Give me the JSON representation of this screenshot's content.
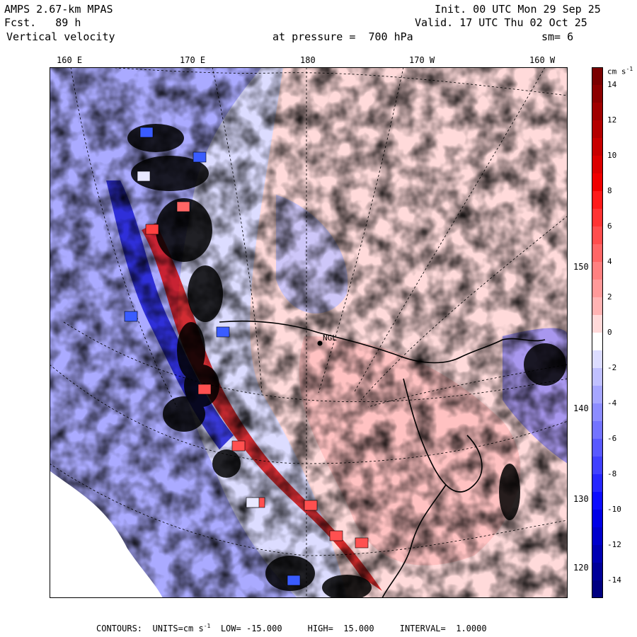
{
  "header": {
    "model": "AMPS 2.67-km MPAS",
    "fcst_label": "Fcst.",
    "fcst_value": "89 h",
    "field": "Vertical velocity",
    "init": "Init. 00 UTC Mon 29 Sep 25",
    "valid": "Valid. 17 UTC Thu 02 Oct 25",
    "level_label": "at pressure =",
    "level_value": "700 hPa",
    "smooth": "sm= 6"
  },
  "map": {
    "top_longitudes": [
      "160 E",
      "170 E",
      "180",
      "170 W",
      "160 W"
    ],
    "right_latitudes": [
      "150 W",
      "140 W",
      "130 W",
      "120 W"
    ],
    "station_label": "NGL"
  },
  "colorbar": {
    "units_label": "cm s",
    "units_exp": "-1",
    "tick_labels": [
      "14",
      "12",
      "10",
      "8",
      "6",
      "4",
      "2",
      "0",
      "-2",
      "-4",
      "-6",
      "-8",
      "-10",
      "-12",
      "-14"
    ],
    "levels": [
      15,
      14,
      13,
      12,
      11,
      10,
      9,
      8,
      7,
      6,
      5,
      4,
      3,
      2,
      1,
      0,
      -1,
      -2,
      -3,
      -4,
      -5,
      -6,
      -7,
      -8,
      -9,
      -10,
      -11,
      -12,
      -13,
      -14,
      -15
    ],
    "colors": [
      "#7a0000",
      "#8c0000",
      "#a00000",
      "#b40000",
      "#c80000",
      "#dc0000",
      "#f00000",
      "#ff1a1a",
      "#ff3333",
      "#ff4d4d",
      "#ff6666",
      "#ff8080",
      "#ff9999",
      "#ffb3b3",
      "#ffd9d9",
      "#ffffff",
      "#dcdcff",
      "#c0c0ff",
      "#a6a6ff",
      "#8c8cff",
      "#7373ff",
      "#5959ff",
      "#4040ff",
      "#2626ff",
      "#0d0dff",
      "#0000e6",
      "#0000cc",
      "#0000b3",
      "#000099",
      "#000080"
    ]
  },
  "footer": {
    "contours_label": "CONTOURS:",
    "units": "UNITS=cm s",
    "units_exp": "-1",
    "low_label": "LOW=",
    "low_value": "-15.000",
    "high_label": "HIGH=",
    "high_value": "15.000",
    "interval_label": "INTERVAL=",
    "interval_value": "1.0000"
  }
}
